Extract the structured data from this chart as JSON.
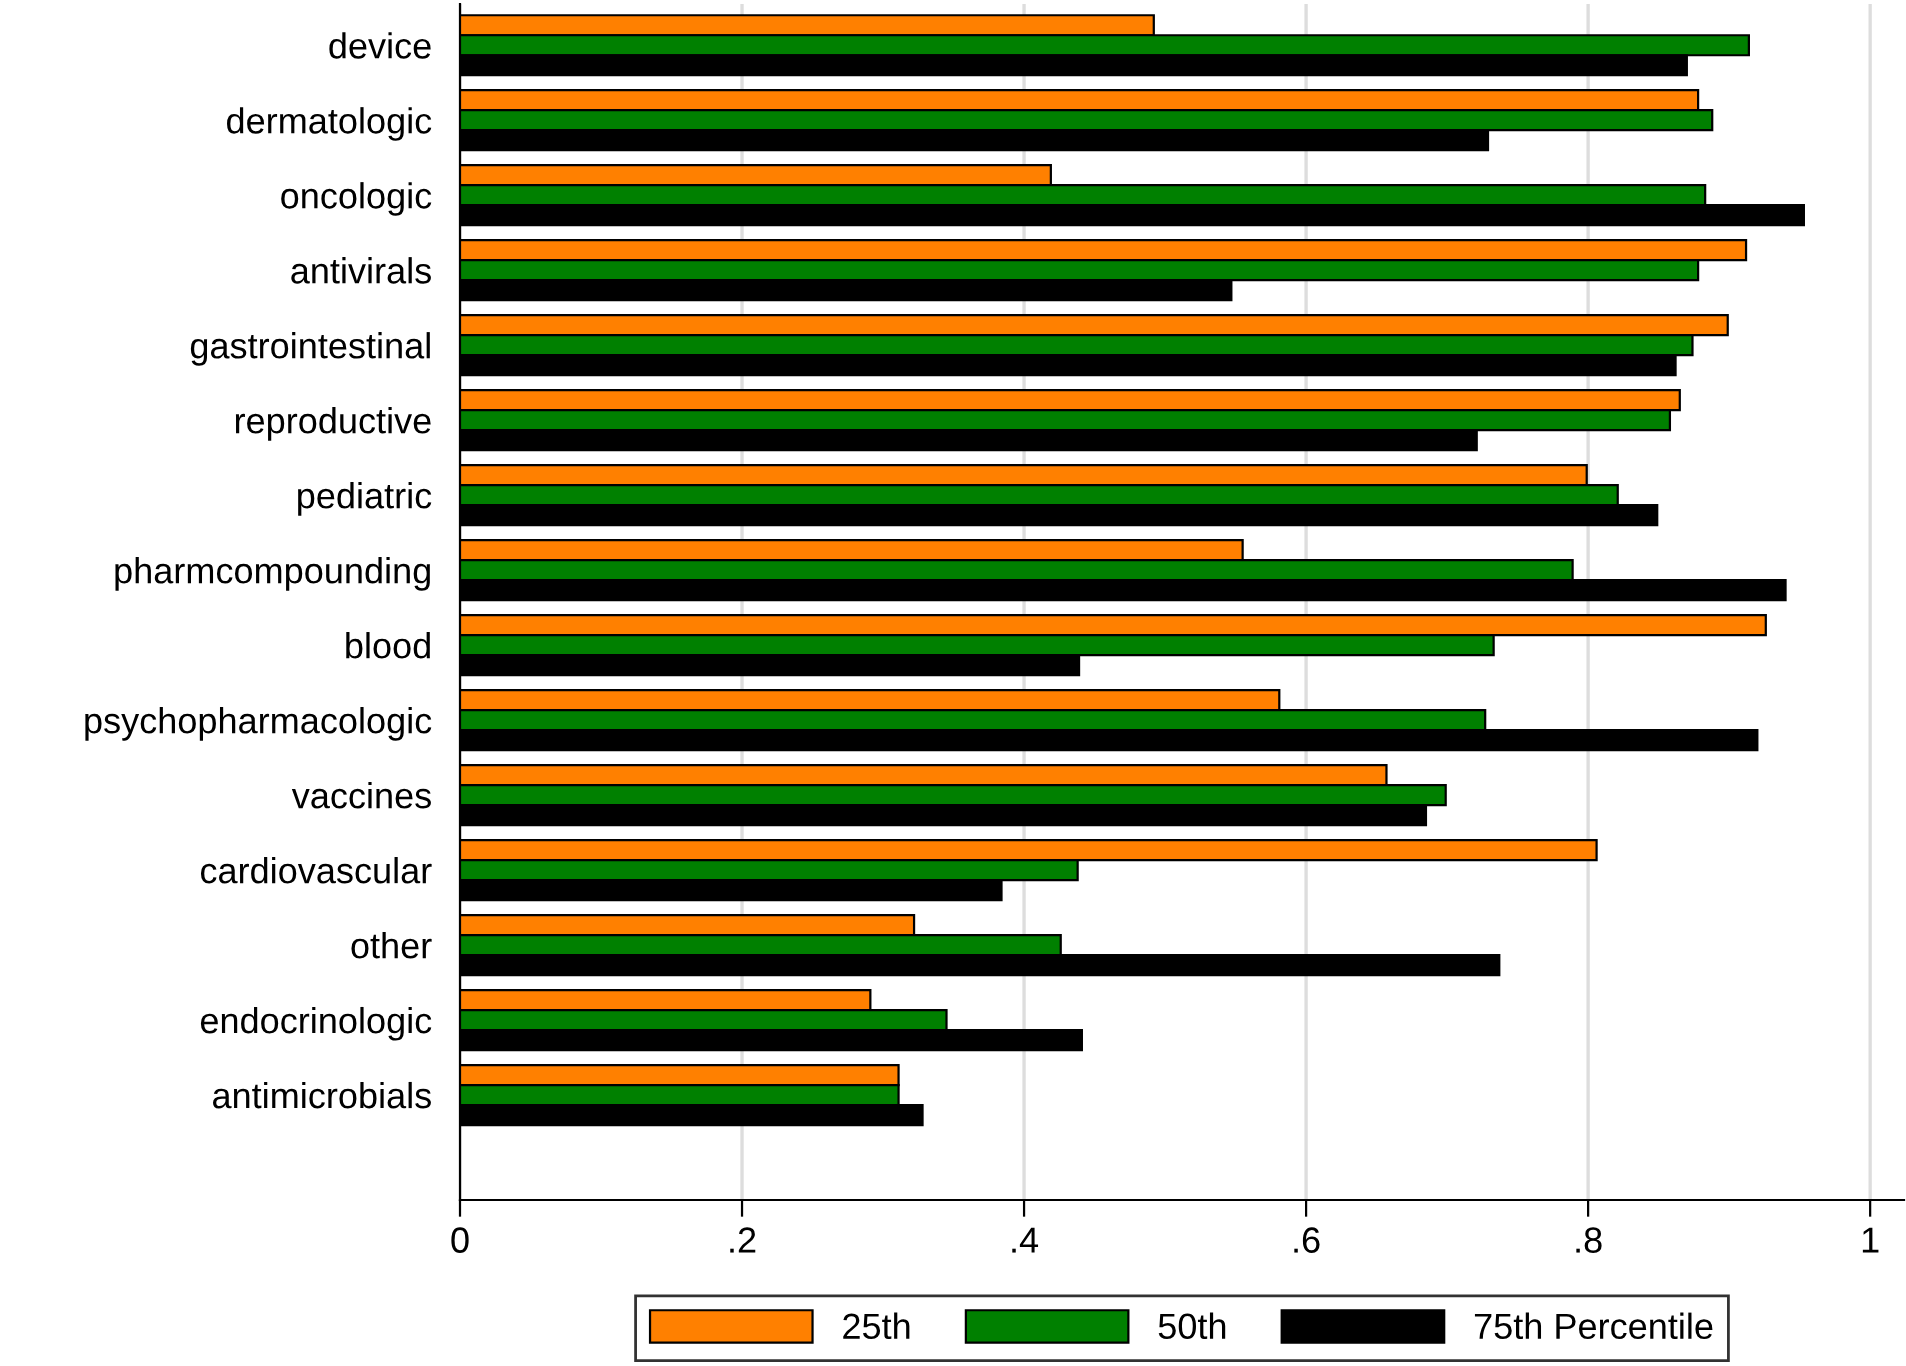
{
  "chart_data": {
    "type": "bar",
    "orientation": "horizontal",
    "categories": [
      "device",
      "dermatologic",
      "oncologic",
      "antivirals",
      "gastrointestinal",
      "reproductive",
      "pediatric",
      "pharmcompounding",
      "blood",
      "psychopharmacologic",
      "vaccines",
      "cardiovascular",
      "other",
      "endocrinologic",
      "antimicrobials"
    ],
    "series": [
      {
        "name": "25th",
        "color": "#ff8000",
        "values": [
          0.492,
          0.878,
          0.419,
          0.912,
          0.899,
          0.865,
          0.799,
          0.555,
          0.926,
          0.581,
          0.657,
          0.806,
          0.322,
          0.291,
          0.311
        ]
      },
      {
        "name": "50th",
        "color": "#008000",
        "values": [
          0.914,
          0.888,
          0.883,
          0.878,
          0.874,
          0.858,
          0.821,
          0.789,
          0.733,
          0.727,
          0.699,
          0.438,
          0.426,
          0.345,
          0.311
        ]
      },
      {
        "name": "75th Percentile",
        "color": "#000000",
        "values": [
          0.87,
          0.729,
          0.953,
          0.547,
          0.862,
          0.721,
          0.849,
          0.94,
          0.439,
          0.92,
          0.685,
          0.384,
          0.737,
          0.441,
          0.328
        ]
      }
    ],
    "xlim": [
      0,
      1.024
    ],
    "xticks": [
      0,
      {
        "value": 0.2,
        "label": ".2"
      },
      {
        "value": 0.4,
        "label": ".4"
      },
      {
        "value": 0.6,
        "label": ".6"
      },
      {
        "value": 0.8,
        "label": ".8"
      },
      1
    ],
    "grid": "x",
    "legend": "bottom"
  }
}
